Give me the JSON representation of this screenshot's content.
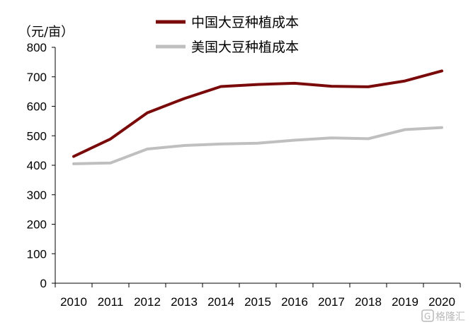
{
  "chart_data": {
    "type": "line",
    "title": "",
    "xlabel": "",
    "ylabel": "（元/亩）",
    "ylim": [
      0,
      800
    ],
    "yticks": [
      0,
      100,
      200,
      300,
      400,
      500,
      600,
      700,
      800
    ],
    "categories": [
      "2010",
      "2011",
      "2012",
      "2013",
      "2014",
      "2015",
      "2016",
      "2017",
      "2018",
      "2019",
      "2020"
    ],
    "series": [
      {
        "name": "中国大豆种植成本",
        "color": "#7a0a0a",
        "values": [
          430,
          489,
          578,
          626,
          667,
          674,
          678,
          668,
          666,
          686,
          720
        ]
      },
      {
        "name": "美国大豆种植成本",
        "color": "#bfbfbf",
        "values": [
          405,
          408,
          455,
          467,
          472,
          475,
          485,
          493,
          490,
          521,
          528
        ]
      }
    ],
    "legend": "top",
    "grid": false
  },
  "watermark": {
    "text": "格隆汇",
    "icon": "logo-g-icon"
  }
}
